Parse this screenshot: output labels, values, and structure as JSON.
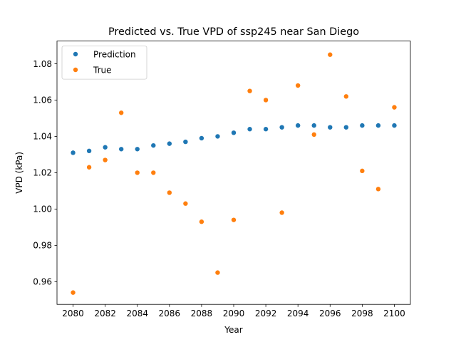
{
  "chart_data": {
    "type": "scatter",
    "title": "Predicted vs. True VPD of ssp245 near San Diego",
    "xlabel": "Year",
    "ylabel": "VPD (kPa)",
    "xlim": [
      2079.0,
      2101.0
    ],
    "ylim": [
      0.9475,
      1.0925
    ],
    "xticks": [
      2080,
      2082,
      2084,
      2086,
      2088,
      2090,
      2092,
      2094,
      2096,
      2098,
      2100
    ],
    "yticks": [
      0.96,
      0.98,
      1.0,
      1.02,
      1.04,
      1.06,
      1.08
    ],
    "ytick_decimals": 2,
    "grid": false,
    "legend_position": "top-left",
    "x": [
      2080,
      2081,
      2082,
      2083,
      2084,
      2085,
      2086,
      2087,
      2088,
      2089,
      2090,
      2091,
      2092,
      2093,
      2094,
      2095,
      2096,
      2097,
      2098,
      2099,
      2100
    ],
    "series": [
      {
        "name": "Prediction",
        "color": "#1f77b4",
        "values": [
          1.031,
          1.032,
          1.034,
          1.033,
          1.033,
          1.035,
          1.036,
          1.037,
          1.039,
          1.04,
          1.042,
          1.044,
          1.044,
          1.045,
          1.046,
          1.046,
          1.045,
          1.045,
          1.046,
          1.046,
          1.046
        ]
      },
      {
        "name": "True",
        "color": "#ff7f0e",
        "values": [
          0.954,
          1.023,
          1.027,
          1.053,
          1.02,
          1.02,
          1.009,
          1.003,
          0.993,
          0.965,
          0.994,
          1.065,
          1.06,
          0.998,
          1.068,
          1.041,
          1.085,
          1.062,
          1.021,
          1.011,
          1.056
        ]
      }
    ]
  }
}
